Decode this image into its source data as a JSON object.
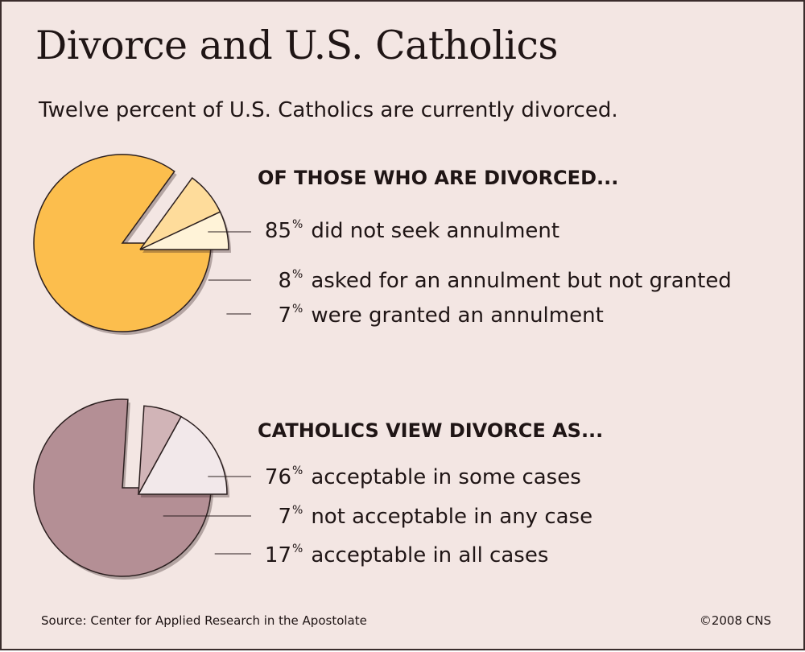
{
  "title": "Divorce and U.S. Catholics",
  "subtitle": "Twelve percent of U.S. Catholics are currently divorced.",
  "percent_symbol": "%",
  "footer": {
    "source": "Source: Center for Applied Research in the Apostolate",
    "copyright": "©2008 CNS"
  },
  "chart_data": [
    {
      "type": "pie",
      "title": "OF THOSE WHO ARE DIVORCED...",
      "labels": [
        "did not seek annulment",
        "asked for an annulment but not granted",
        "were granted an annulment"
      ],
      "values": [
        85,
        8,
        7
      ],
      "display_values": [
        "85",
        "8",
        "7"
      ],
      "colors": [
        "#fcbe4d",
        "#fedc9b",
        "#fff3d8"
      ]
    },
    {
      "type": "pie",
      "title": "CATHOLICS VIEW DIVORCE AS...",
      "labels": [
        "acceptable in some cases",
        "not acceptable in any case",
        "acceptable in all cases"
      ],
      "values": [
        76,
        7,
        17
      ],
      "display_values": [
        "76",
        "7",
        "17"
      ],
      "colors": [
        "#b48f95",
        "#d1b4b7",
        "#f2e8ea"
      ]
    }
  ]
}
